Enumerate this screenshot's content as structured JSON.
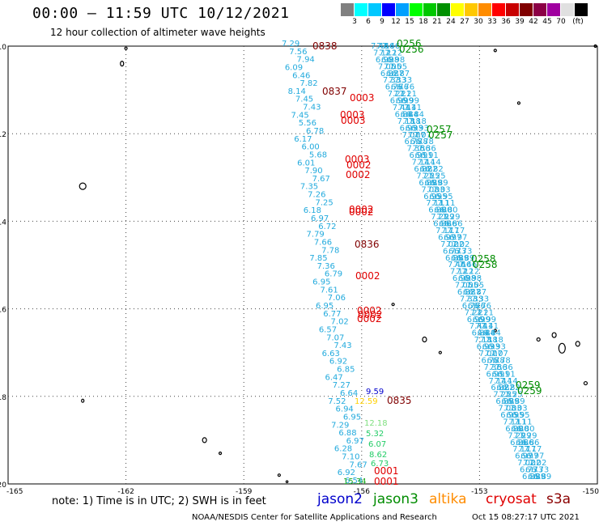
{
  "header": {
    "title": "00:00 – 11:59 UTC 10/12/2021",
    "subtitle": "12 hour collection of altimeter wave heights"
  },
  "colorbar": {
    "colors": [
      "#808080",
      "#00ffff",
      "#00c8ff",
      "#0000ff",
      "#00a0ff",
      "#00ff00",
      "#00c800",
      "#009000",
      "#ffff00",
      "#ffc800",
      "#ff8c00",
      "#ff0000",
      "#c80000",
      "#800000",
      "#8b0045",
      "#a000a0",
      "#e0e0e0",
      "#000000"
    ],
    "labels": [
      "3",
      "6",
      "9",
      "12",
      "15",
      "18",
      "21",
      "24",
      "27",
      "30",
      "33",
      "36",
      "39",
      "42",
      "45",
      "70",
      "(ft)"
    ]
  },
  "map": {
    "lat_ticks": [
      "-10",
      "-12",
      "-14",
      "-16",
      "-18",
      "-20"
    ],
    "lon_ticks": [
      "-165",
      "-162",
      "-159",
      "-156",
      "-153",
      "-150"
    ],
    "lon_range": [
      -165,
      -150
    ],
    "lat_range": [
      -20,
      -10
    ],
    "grid": "dotted"
  },
  "tracks": {
    "time_labels_jason3": [
      "0256",
      "0256",
      "0257",
      "0257",
      "0258",
      "0258",
      "0259",
      "0259"
    ],
    "time_labels_cryosat": [
      "0003",
      "0003",
      "0003",
      "0003",
      "0002",
      "0002",
      "0002",
      "0002",
      "0002",
      "0002",
      "0002",
      "0002",
      "0001",
      "0001"
    ],
    "time_labels_s3a": [
      "0838",
      "0837",
      "0836",
      "0835"
    ],
    "swh_values_left": [
      "7.29",
      "7.56",
      "7.94",
      "6.09",
      "6.46",
      "7.82",
      "8.14",
      "7.45",
      "7.43",
      "7.45",
      "5.56",
      "6.78",
      "6.17",
      "6.00",
      "5.68",
      "6.01",
      "7.90",
      "7.67",
      "7.35",
      "7.26",
      "7.25",
      "6.18",
      "6.97",
      "6.72",
      "7.79",
      "7.66",
      "7.78",
      "7.85",
      "7.36",
      "6.79",
      "6.95",
      "7.61",
      "7.06",
      "6.95",
      "6.77",
      "7.02",
      "6.57",
      "7.07",
      "7.43",
      "6.63",
      "6.92",
      "6.85",
      "6.47",
      "7.27",
      "6.64",
      "7.52",
      "6.94",
      "6.95",
      "7.29",
      "6.88",
      "6.97",
      "6.28",
      "7.10",
      "7.67",
      "6.92",
      "6.54"
    ],
    "swh_values_special": [
      "9.59",
      "12.59",
      "12.18",
      "5.32",
      "6.07",
      "8.62",
      "6.73",
      "15.34"
    ],
    "swh_values_right": [
      "7.46",
      "7.12",
      "6.98",
      "7.05",
      "6.87",
      "7.33",
      "6.76",
      "7.21",
      "6.99",
      "7.41",
      "6.84",
      "7.18",
      "6.93",
      "7.07",
      "6.78",
      "7.36",
      "6.91",
      "7.14",
      "6.82",
      "7.25",
      "6.89",
      "7.03",
      "6.95",
      "7.11",
      "6.80",
      "7.29",
      "6.86",
      "7.17",
      "6.97",
      "7.02",
      "6.73",
      "6.89"
    ]
  },
  "note": {
    "text": "note: 1) Time is in UTC; 2) SWH is in feet"
  },
  "legend": {
    "items": [
      {
        "label": "jason2",
        "color": "#0000cc"
      },
      {
        "label": "jason3",
        "color": "#008c00"
      },
      {
        "label": "altika",
        "color": "#ff8c00"
      },
      {
        "label": "cryosat",
        "color": "#e00000"
      },
      {
        "label": "s3a",
        "color": "#8b0000"
      }
    ]
  },
  "footer": {
    "credit": "NOAA/NESDIS Center for Satellite Applications and Research",
    "timestamp": "Oct 15 08:27:17 UTC 2021"
  },
  "colors": {
    "swh_cyan": "#22aadd",
    "jason3": "#008c00",
    "cryosat": "#e00000",
    "s3a": "#800000"
  }
}
